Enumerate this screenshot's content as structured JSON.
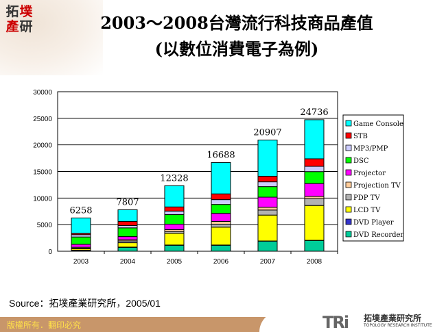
{
  "header": {
    "logo_text": "拓墣產研",
    "title_line1": "2003～2008台灣流行科技商品產值",
    "title_line2": "(以數位消費電子為例)"
  },
  "chart_data": {
    "type": "bar",
    "stacked": true,
    "categories": [
      "2003",
      "2004",
      "2005",
      "2006",
      "2007",
      "2008"
    ],
    "totals": [
      6258,
      7807,
      12328,
      16688,
      20907,
      24736
    ],
    "series": [
      {
        "name": "DVD Recorder",
        "color": "#00cc99",
        "values": [
          150,
          730,
          1120,
          1120,
          1900,
          2025
        ]
      },
      {
        "name": "DVD Player",
        "color": "#3333cc",
        "values": [
          50,
          50,
          50,
          50,
          30,
          30
        ]
      },
      {
        "name": "LCD TV",
        "color": "#ffff00",
        "values": [
          250,
          820,
          2200,
          3360,
          4870,
          6550
        ]
      },
      {
        "name": "PDP TV",
        "color": "#b2b2b2",
        "values": [
          100,
          340,
          345,
          560,
          950,
          1290
        ]
      },
      {
        "name": "Projection TV",
        "color": "#ffcc99",
        "values": [
          200,
          215,
          345,
          520,
          520,
          430
        ]
      },
      {
        "name": "Projector",
        "color": "#ff00ff",
        "values": [
          550,
          600,
          1030,
          1510,
          1900,
          2410
        ]
      },
      {
        "name": "DSC",
        "color": "#00ff00",
        "values": [
          1380,
          1640,
          1810,
          1680,
          1980,
          2240
        ]
      },
      {
        "name": "MP3/PMP",
        "color": "#ccccff",
        "values": [
          430,
          430,
          650,
          905,
          905,
          990
        ]
      },
      {
        "name": "STB",
        "color": "#ff0000",
        "values": [
          250,
          780,
          780,
          1080,
          1035,
          1420
        ]
      },
      {
        "name": "Game Console",
        "color": "#00ffff",
        "values": [
          2898,
          2202,
          3998,
          5903,
          6817,
          7351
        ]
      }
    ],
    "yticks": [
      "0",
      "5000",
      "10000",
      "15000",
      "20000",
      "25000",
      "30000"
    ],
    "ylim": [
      0,
      30000
    ],
    "grid": true,
    "legend": "right"
  },
  "source": "Source：拓墣產業研究所，2005/01",
  "footer": {
    "copyright": "版權所有．翻印必究",
    "brand_mark": "TRi",
    "brand_cn": "拓墣產業研究所",
    "brand_en": "TOPOLOGY RESEARCH INSTITUTE"
  }
}
